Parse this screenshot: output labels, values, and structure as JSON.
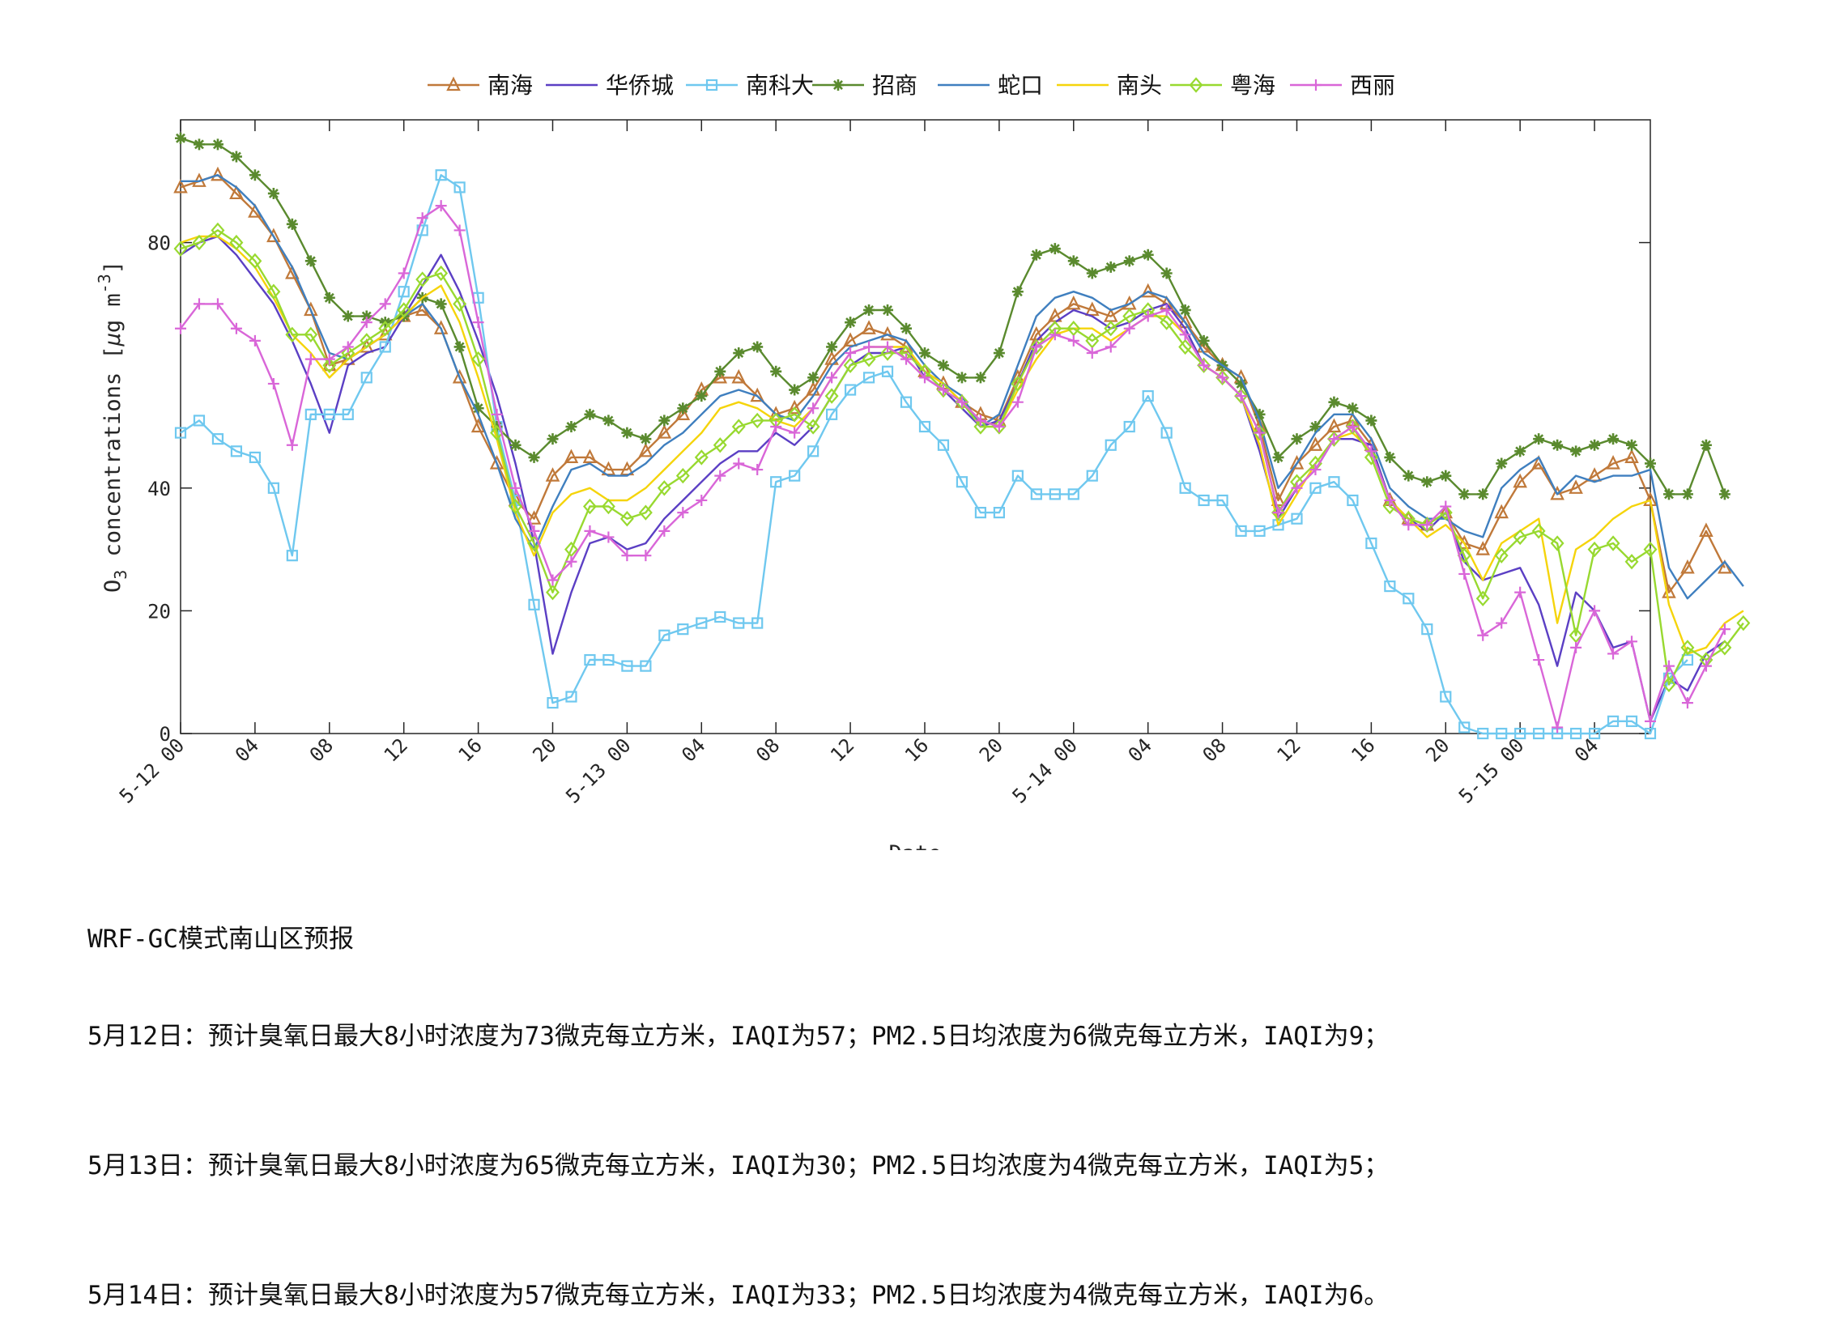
{
  "chart_data": {
    "type": "line",
    "xlabel": "Date",
    "ylabel": "O<sub>3</sub> concentrations [μg m<sup>-3</sup>]",
    "ylabel_parts": {
      "pre": "O",
      "sub": "3",
      "mid": " concentrations [",
      "mu": "μ",
      "post": "g m",
      "sup": "-3",
      "end": "]"
    },
    "ylim": [
      0,
      100
    ],
    "yticks": [
      0,
      20,
      40,
      80
    ],
    "x_start": "5-12 00",
    "x_hours": 79,
    "x_tick_hours": [
      0,
      4,
      8,
      12,
      16,
      20,
      24,
      28,
      32,
      36,
      40,
      44,
      48,
      52,
      56,
      60,
      64,
      68,
      72,
      76
    ],
    "x_tick_labels": [
      "5-12 00",
      "04",
      "08",
      "12",
      "16",
      "20",
      "5-13 00",
      "04",
      "08",
      "12",
      "16",
      "20",
      "5-14 00",
      "04",
      "08",
      "12",
      "16",
      "20",
      "5-15 00",
      "04"
    ],
    "grid": false,
    "legend_position": "top",
    "series": [
      {
        "name": "南海",
        "color": "#c0793a",
        "marker": "triangle",
        "values": [
          89,
          90,
          91,
          88,
          85,
          81,
          75,
          69,
          60,
          61,
          63,
          65,
          68,
          69,
          66,
          58,
          50,
          44,
          38,
          35,
          42,
          45,
          45,
          43,
          43,
          46,
          49,
          52,
          56,
          58,
          58,
          55,
          52,
          53,
          56,
          61,
          64,
          66,
          65,
          63,
          59,
          57,
          54,
          52,
          51,
          58,
          65,
          68,
          70,
          69,
          68,
          70,
          72,
          70,
          67,
          63,
          60,
          58,
          50,
          38,
          44,
          47,
          50,
          51,
          47,
          38,
          35,
          34,
          36,
          31,
          30,
          36,
          41,
          44,
          39,
          40,
          42,
          44,
          45,
          38,
          23,
          27,
          33,
          27
        ]
      },
      {
        "name": "华侨城",
        "color": "#5b3fc4",
        "marker": "none",
        "values": [
          78,
          80,
          81,
          78,
          74,
          70,
          64,
          57,
          49,
          60,
          62,
          63,
          68,
          73,
          78,
          72,
          64,
          55,
          44,
          31,
          13,
          23,
          31,
          32,
          30,
          31,
          35,
          38,
          41,
          44,
          46,
          46,
          49,
          47,
          50,
          55,
          60,
          62,
          62,
          63,
          58,
          56,
          53,
          50,
          51,
          57,
          64,
          67,
          69,
          68,
          66,
          67,
          69,
          70,
          66,
          60,
          58,
          55,
          46,
          35,
          40,
          43,
          48,
          48,
          47,
          38,
          35,
          33,
          36,
          28,
          25,
          26,
          27,
          21,
          11,
          23,
          20,
          14,
          15,
          2,
          9,
          7,
          13,
          15
        ]
      },
      {
        "name": "南科大",
        "color": "#6fc8ef",
        "marker": "square",
        "values": [
          49,
          51,
          48,
          46,
          45,
          40,
          29,
          52,
          52,
          52,
          58,
          63,
          72,
          82,
          91,
          89,
          71,
          50,
          38,
          21,
          5,
          6,
          12,
          12,
          11,
          11,
          16,
          17,
          18,
          19,
          18,
          18,
          41,
          42,
          46,
          52,
          56,
          58,
          59,
          54,
          50,
          47,
          41,
          36,
          36,
          42,
          39,
          39,
          39,
          42,
          47,
          50,
          55,
          49,
          40,
          38,
          38,
          33,
          33,
          34,
          35,
          40,
          41,
          38,
          31,
          24,
          22,
          17,
          6,
          1,
          0,
          0,
          0,
          0,
          0,
          0,
          0,
          2,
          2,
          0,
          9,
          12
        ]
      },
      {
        "name": "招商",
        "color": "#5a8a2e",
        "marker": "star",
        "values": [
          97,
          96,
          96,
          94,
          91,
          88,
          83,
          77,
          71,
          68,
          68,
          67,
          68,
          71,
          70,
          63,
          53,
          50,
          47,
          45,
          48,
          50,
          52,
          51,
          49,
          48,
          51,
          53,
          55,
          59,
          62,
          63,
          59,
          56,
          58,
          63,
          67,
          69,
          69,
          66,
          62,
          60,
          58,
          58,
          62,
          72,
          78,
          79,
          77,
          75,
          76,
          77,
          78,
          75,
          69,
          64,
          60,
          57,
          52,
          45,
          48,
          50,
          54,
          53,
          51,
          45,
          42,
          41,
          42,
          39,
          39,
          44,
          46,
          48,
          47,
          46,
          47,
          48,
          47,
          44,
          39,
          39,
          47,
          39
        ]
      },
      {
        "name": "蛇口",
        "color": "#3f7fbf",
        "marker": "none",
        "values": [
          90,
          90,
          91,
          89,
          86,
          81,
          76,
          69,
          62,
          61,
          63,
          65,
          68,
          70,
          66,
          58,
          52,
          44,
          35,
          30,
          37,
          43,
          44,
          42,
          42,
          44,
          47,
          49,
          52,
          55,
          56,
          55,
          52,
          51,
          55,
          60,
          63,
          64,
          65,
          64,
          60,
          57,
          55,
          50,
          52,
          60,
          68,
          71,
          72,
          71,
          69,
          70,
          72,
          71,
          67,
          62,
          60,
          58,
          51,
          40,
          44,
          49,
          52,
          52,
          48,
          40,
          37,
          35,
          35,
          33,
          32,
          40,
          43,
          45,
          39,
          42,
          41,
          42,
          42,
          43,
          27,
          22,
          25,
          28,
          24
        ]
      },
      {
        "name": "南头",
        "color": "#f5d40b",
        "marker": "none",
        "values": [
          80,
          81,
          81,
          79,
          76,
          71,
          65,
          62,
          58,
          61,
          63,
          65,
          68,
          71,
          73,
          67,
          58,
          48,
          36,
          29,
          36,
          39,
          40,
          38,
          38,
          40,
          43,
          46,
          49,
          53,
          54,
          53,
          51,
          50,
          53,
          58,
          62,
          63,
          63,
          63,
          59,
          57,
          54,
          51,
          50,
          56,
          61,
          65,
          66,
          66,
          64,
          66,
          68,
          68,
          65,
          60,
          58,
          55,
          47,
          34,
          39,
          44,
          48,
          49,
          46,
          38,
          35,
          32,
          34,
          31,
          25,
          31,
          33,
          35,
          18,
          30,
          32,
          35,
          37,
          38,
          21,
          13,
          14,
          18,
          20
        ]
      },
      {
        "name": "粤海",
        "color": "#98d930",
        "marker": "diamond",
        "values": [
          79,
          80,
          82,
          80,
          77,
          72,
          65,
          65,
          60,
          62,
          64,
          66,
          69,
          74,
          75,
          70,
          61,
          49,
          37,
          31,
          23,
          30,
          37,
          37,
          35,
          36,
          40,
          42,
          45,
          47,
          50,
          51,
          51,
          52,
          50,
          55,
          60,
          61,
          62,
          62,
          59,
          56,
          54,
          50,
          50,
          57,
          63,
          66,
          66,
          64,
          66,
          68,
          69,
          67,
          63,
          60,
          58,
          55,
          49,
          36,
          41,
          44,
          48,
          50,
          45,
          37,
          35,
          34,
          36,
          29,
          22,
          29,
          32,
          33,
          31,
          16,
          30,
          31,
          28,
          30,
          8,
          14,
          12,
          14,
          18
        ]
      },
      {
        "name": "西丽",
        "color": "#d966d8",
        "marker": "plus",
        "values": [
          66,
          70,
          70,
          66,
          64,
          57,
          47,
          61,
          61,
          63,
          67,
          70,
          75,
          84,
          86,
          82,
          67,
          52,
          40,
          33,
          25,
          28,
          33,
          32,
          29,
          29,
          33,
          36,
          38,
          42,
          44,
          43,
          50,
          49,
          53,
          58,
          62,
          63,
          63,
          61,
          58,
          56,
          54,
          51,
          50,
          54,
          63,
          65,
          64,
          62,
          63,
          66,
          68,
          69,
          65,
          60,
          58,
          55,
          49,
          36,
          40,
          43,
          48,
          50,
          46,
          38,
          34,
          34,
          37,
          26,
          16,
          18,
          23,
          12,
          1,
          14,
          20,
          13,
          15,
          2,
          11,
          5,
          11,
          17
        ]
      }
    ]
  },
  "notes": {
    "title": "WRF-GC模式南山区预报",
    "lines": [
      "5月12日：预计臭氧日最大8小时浓度为73微克每立方米，IAQI为57；PM2.5日均浓度为6微克每立方米，IAQI为9；",
      "5月13日：预计臭氧日最大8小时浓度为65微克每立方米，IAQI为30；PM2.5日均浓度为4微克每立方米，IAQI为5；",
      "5月14日：预计臭氧日最大8小时浓度为57微克每立方米，IAQI为33；PM2.5日均浓度为4微克每立方米，IAQI为6。"
    ]
  }
}
